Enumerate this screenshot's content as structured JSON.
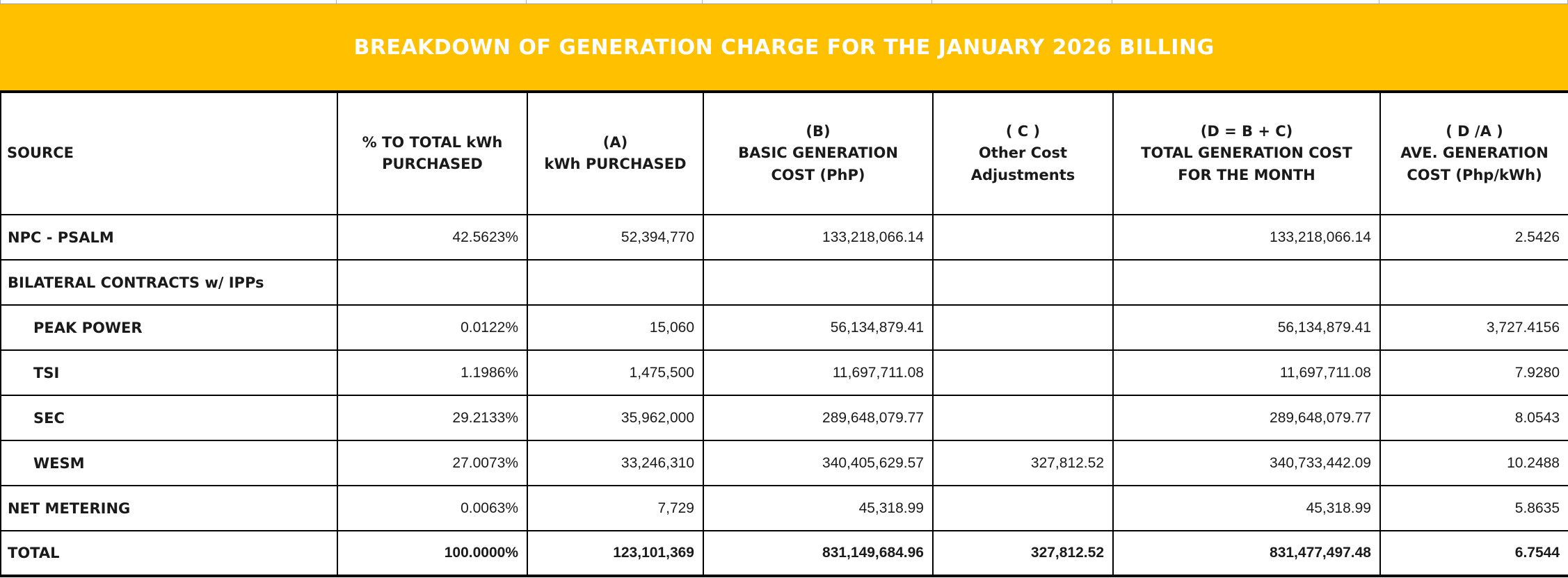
{
  "title_band": {
    "text": "BREAKDOWN OF GENERATION CHARGE FOR THE JANUARY 2026 BILLING",
    "bg_color": "#FFC000",
    "text_color": "#FFFFFF"
  },
  "table": {
    "headers": [
      "SOURCE",
      "% TO TOTAL kWh\nPURCHASED",
      "(A)\nkWh PURCHASED",
      "(B)\nBASIC GENERATION\nCOST (PhP)",
      "( C )\nOther Cost\nAdjustments",
      "(D = B + C)\nTOTAL GENERATION COST\nFOR THE MONTH",
      "( D /A )\nAVE. GENERATION\nCOST (Php/kWh)"
    ],
    "rows": [
      {
        "source": "NPC - PSALM",
        "pct": "42.5623%",
        "kwh": "52,394,770",
        "basic": "133,218,066.14",
        "adjustments": "",
        "total": "133,218,066.14",
        "ave": "2.5426"
      },
      {
        "source": "BILATERAL CONTRACTS w/ IPPs",
        "pct": "",
        "kwh": "",
        "basic": "",
        "adjustments": "",
        "total": "",
        "ave": ""
      },
      {
        "source": "PEAK POWER",
        "pct": "0.0122%",
        "kwh": "15,060",
        "basic": "56,134,879.41",
        "adjustments": "",
        "total": "56,134,879.41",
        "ave": "3,727.4156"
      },
      {
        "source": "TSI",
        "pct": "1.1986%",
        "kwh": "1,475,500",
        "basic": "11,697,711.08",
        "adjustments": "",
        "total": "11,697,711.08",
        "ave": "7.9280"
      },
      {
        "source": "SEC",
        "pct": "29.2133%",
        "kwh": "35,962,000",
        "basic": "289,648,079.77",
        "adjustments": "",
        "total": "289,648,079.77",
        "ave": "8.0543"
      },
      {
        "source": "WESM",
        "pct": "27.0073%",
        "kwh": "33,246,310",
        "basic": "340,405,629.57",
        "adjustments": "327,812.52",
        "total": "340,733,442.09",
        "ave": "10.2488"
      },
      {
        "source": "NET METERING",
        "pct": "0.0063%",
        "kwh": "7,729",
        "basic": "45,318.99",
        "adjustments": "",
        "total": "45,318.99",
        "ave": "5.8635"
      },
      {
        "source": "TOTAL",
        "pct": "100.0000%",
        "kwh": "123,101,369",
        "basic": "831,149,684.96",
        "adjustments": "327,812.52",
        "total": "831,477,497.48",
        "ave": "6.7544"
      }
    ]
  }
}
